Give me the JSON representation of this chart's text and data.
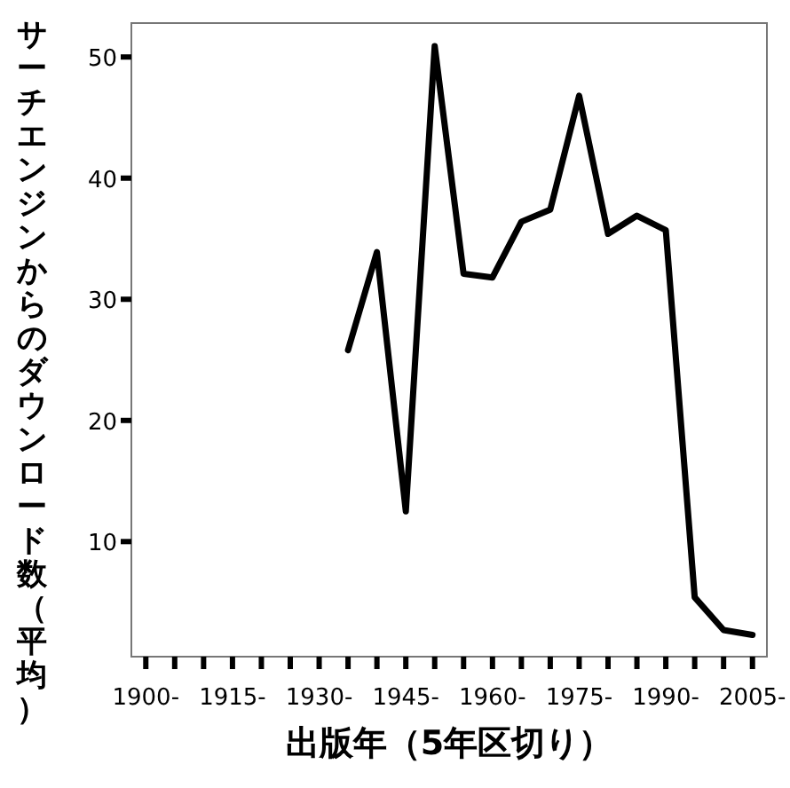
{
  "chart_data": {
    "type": "line",
    "xlabel": "出版年（5年区切り）",
    "ylabel": "サーチエンジンからのダウンロード数（平均）",
    "x": [
      1935,
      1940,
      1945,
      1950,
      1955,
      1960,
      1965,
      1970,
      1975,
      1980,
      1985,
      1990,
      1995,
      2000,
      2005
    ],
    "series": [
      {
        "color": "#000000",
        "values": [
          25.8,
          33.9,
          12.5,
          50.9,
          32.1,
          31.8,
          36.4,
          37.4,
          46.8,
          35.4,
          36.9,
          35.7,
          5.4,
          2.7,
          2.3
        ]
      }
    ],
    "xlim": [
      1897.5,
      2007.5
    ],
    "ylim": [
      0.5,
      52.8
    ],
    "xticks": [
      {
        "value": 1900,
        "label": "1900-"
      },
      {
        "value": 1905,
        "label": null
      },
      {
        "value": 1910,
        "label": null
      },
      {
        "value": 1915,
        "label": "1915-"
      },
      {
        "value": 1920,
        "label": null
      },
      {
        "value": 1925,
        "label": null
      },
      {
        "value": 1930,
        "label": "1930-"
      },
      {
        "value": 1935,
        "label": null
      },
      {
        "value": 1940,
        "label": null
      },
      {
        "value": 1945,
        "label": "1945-"
      },
      {
        "value": 1950,
        "label": null
      },
      {
        "value": 1955,
        "label": null
      },
      {
        "value": 1960,
        "label": "1960-"
      },
      {
        "value": 1965,
        "label": null
      },
      {
        "value": 1970,
        "label": null
      },
      {
        "value": 1975,
        "label": "1975-"
      },
      {
        "value": 1980,
        "label": null
      },
      {
        "value": 1985,
        "label": null
      },
      {
        "value": 1990,
        "label": "1990-"
      },
      {
        "value": 1995,
        "label": null
      },
      {
        "value": 2000,
        "label": null
      },
      {
        "value": 2005,
        "label": "2005-"
      }
    ],
    "yticks": [
      10,
      20,
      30,
      40,
      50
    ],
    "grid": false,
    "marker": "none",
    "line_style": "solid"
  }
}
